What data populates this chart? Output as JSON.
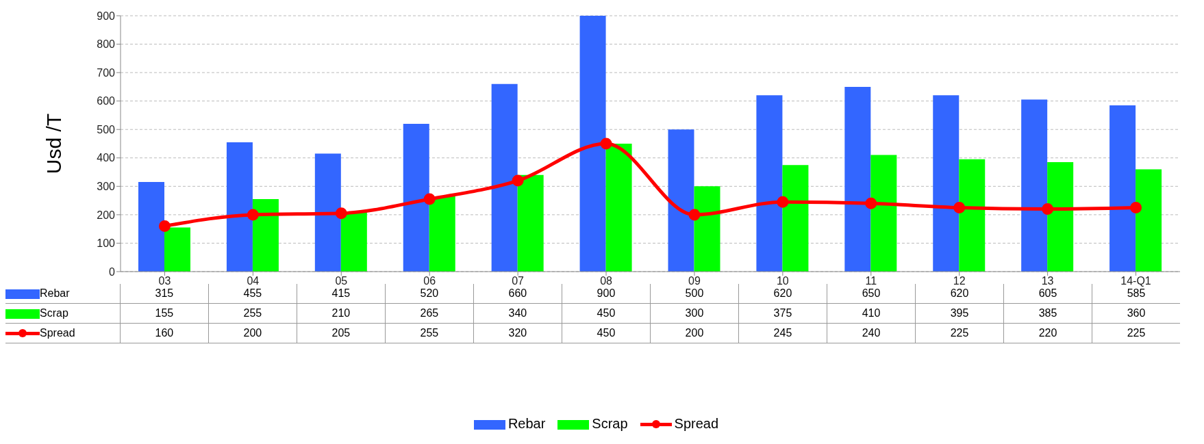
{
  "chart_data": {
    "type": "bar",
    "ylabel": "Usd /T",
    "categories": [
      "03",
      "04",
      "05",
      "06",
      "07",
      "08",
      "09",
      "10",
      "11",
      "12",
      "13",
      "14-Q1"
    ],
    "series": [
      {
        "name": "Rebar",
        "color": "#3366ff",
        "values": [
          315,
          455,
          415,
          520,
          660,
          900,
          500,
          620,
          650,
          620,
          605,
          585
        ]
      },
      {
        "name": "Scrap",
        "color": "#00ff00",
        "values": [
          155,
          255,
          210,
          265,
          340,
          450,
          300,
          375,
          410,
          395,
          385,
          360
        ]
      },
      {
        "name": "Spread",
        "type": "line",
        "color": "#ff0000",
        "values": [
          160,
          200,
          205,
          255,
          320,
          450,
          200,
          245,
          240,
          225,
          220,
          225
        ]
      }
    ],
    "ylim": [
      0,
      900
    ],
    "yticks": [
      0,
      100,
      200,
      300,
      400,
      500,
      600,
      700,
      800,
      900
    ],
    "grid": "y",
    "legend": "bottom",
    "data_labels": true,
    "marker": "circle"
  }
}
